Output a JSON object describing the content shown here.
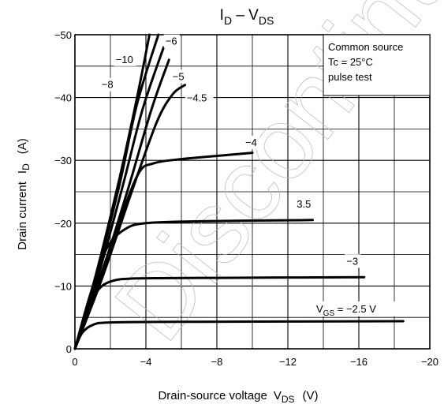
{
  "chart_data": {
    "type": "line",
    "title": {
      "main": "I",
      "main_sub": "D",
      "sep": " – V",
      "sep_sub": "DS"
    },
    "xlabel": {
      "text": "Drain-source voltage",
      "sym": "V",
      "sym_sub": "DS",
      "unit": "(V)"
    },
    "ylabel": {
      "text": "Drain current",
      "sym": "I",
      "sym_sub": "D",
      "unit": "(A)"
    },
    "xlim": [
      0,
      -20
    ],
    "ylim": [
      0,
      -50
    ],
    "x_ticks": [
      "0",
      "−4",
      "−8",
      "−12",
      "−16",
      "−20"
    ],
    "x_tick_values": [
      0,
      -4,
      -8,
      -12,
      -16,
      -20
    ],
    "y_ticks": [
      "0",
      "−10",
      "−20",
      "−30",
      "−40",
      "−50"
    ],
    "y_tick_values": [
      0,
      -10,
      -20,
      -30,
      -40,
      -50
    ],
    "x_grid_step": -2,
    "y_grid_step": -5,
    "grid": true,
    "annotation_box": [
      "Common source",
      "Tc = 25°C",
      "pulse test"
    ],
    "watermark": "Discontinued",
    "series": [
      {
        "name": "−10",
        "points": [
          [
            0,
            0
          ],
          [
            -1.2,
            -12
          ],
          [
            -2.5,
            -27
          ],
          [
            -3.5,
            -40
          ],
          [
            -4.2,
            -50
          ]
        ]
      },
      {
        "name": "−8",
        "points": [
          [
            0,
            0
          ],
          [
            -1.2,
            -11.5
          ],
          [
            -2.5,
            -26
          ],
          [
            -3.5,
            -39
          ],
          [
            -4.7,
            -50
          ]
        ]
      },
      {
        "name": "−6",
        "points": [
          [
            0,
            0
          ],
          [
            -1.3,
            -11.5
          ],
          [
            -2.7,
            -26
          ],
          [
            -3.8,
            -38
          ],
          [
            -5,
            -48
          ]
        ]
      },
      {
        "name": "−5",
        "points": [
          [
            0,
            0
          ],
          [
            -1.4,
            -11
          ],
          [
            -3,
            -25.5
          ],
          [
            -4.3,
            -38
          ],
          [
            -5.3,
            -46
          ]
        ]
      },
      {
        "name": "−4.5",
        "points": [
          [
            0,
            0
          ],
          [
            -1.5,
            -11
          ],
          [
            -3.2,
            -25
          ],
          [
            -4.6,
            -36
          ],
          [
            -5.5,
            -40.5
          ],
          [
            -6.2,
            -42
          ]
        ]
      },
      {
        "name": "−4",
        "points": [
          [
            0,
            0
          ],
          [
            -1.3,
            -10.5
          ],
          [
            -2.6,
            -21
          ],
          [
            -3.6,
            -28
          ],
          [
            -4.4,
            -29.5
          ],
          [
            -6,
            -30.2
          ],
          [
            -10,
            -31.2
          ]
        ]
      },
      {
        "name": "−3.5",
        "points": [
          [
            0,
            0
          ],
          [
            -0.9,
            -9
          ],
          [
            -1.8,
            -16
          ],
          [
            -2.8,
            -19
          ],
          [
            -4,
            -20
          ],
          [
            -7,
            -20.3
          ],
          [
            -13.4,
            -20.5
          ]
        ]
      },
      {
        "name": "−3",
        "points": [
          [
            0,
            0
          ],
          [
            -0.6,
            -5.5
          ],
          [
            -1.2,
            -9
          ],
          [
            -2,
            -10.7
          ],
          [
            -3.5,
            -11.2
          ],
          [
            -8,
            -11.3
          ],
          [
            -16.3,
            -11.4
          ]
        ]
      },
      {
        "name": "V_GS = −2.5 V",
        "points": [
          [
            0,
            0
          ],
          [
            -0.4,
            -2.5
          ],
          [
            -1,
            -3.8
          ],
          [
            -2,
            -4.2
          ],
          [
            -6,
            -4.3
          ],
          [
            -18.5,
            -4.4
          ]
        ]
      }
    ],
    "series_labels": [
      {
        "text": "−10",
        "at": [
          -2.3,
          -45.5
        ]
      },
      {
        "text": "−8",
        "at": [
          -1.5,
          -41.5
        ]
      },
      {
        "text": "−6",
        "at": [
          -5.1,
          -48.4
        ]
      },
      {
        "text": "−5",
        "at": [
          -5.5,
          -42.8
        ]
      },
      {
        "text": "−4.5",
        "at": [
          -6.3,
          -39.4
        ]
      },
      {
        "text": "−4",
        "at": [
          -9.6,
          -32.3
        ]
      },
      {
        "text": "3.5",
        "at": [
          -12.5,
          -22.5
        ]
      },
      {
        "text": "−3",
        "at": [
          -15.3,
          -13.4
        ]
      },
      {
        "text": "V_GS = −2.5 V",
        "at": [
          -13.6,
          -5.8
        ]
      }
    ]
  }
}
